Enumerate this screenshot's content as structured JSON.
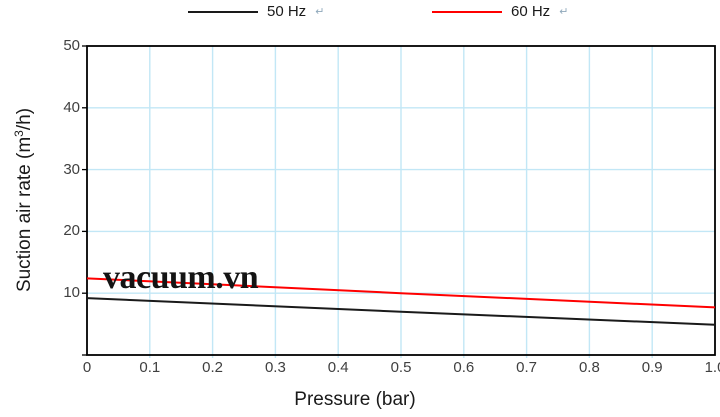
{
  "chart_data": {
    "type": "line",
    "title": "",
    "xlabel": "Pressure (bar)",
    "ylabel": "Suction air rate (m3/h)",
    "ylabel_parts": {
      "prefix": "Suction air rate (m",
      "sup": "3",
      "suffix": "/h)"
    },
    "xlim": [
      0,
      1.0
    ],
    "ylim": [
      0,
      50
    ],
    "xticks": [
      0,
      0.1,
      0.2,
      0.3,
      0.4,
      0.5,
      0.6,
      0.7,
      0.8,
      0.9,
      1.0
    ],
    "xtick_labels": [
      "0",
      "0.1",
      "0.2",
      "0.3",
      "0.4",
      "0.5",
      "0.6",
      "0.7",
      "0.8",
      "0.9",
      "1.0"
    ],
    "yticks": [
      0,
      10,
      20,
      30,
      40,
      50
    ],
    "ytick_labels": [
      "",
      "10",
      "20",
      "30",
      "40",
      "50"
    ],
    "grid": true,
    "legend_position": "top-outside",
    "x": [
      0,
      0.5,
      1.0
    ],
    "series": [
      {
        "name": "50 Hz",
        "color": "#1a1a1a",
        "values": [
          9.2,
          7.0,
          4.9
        ]
      },
      {
        "name": "60 Hz",
        "color": "#ff0000",
        "values": [
          12.4,
          10.0,
          7.7
        ]
      }
    ]
  },
  "legend": {
    "items": [
      {
        "label": "50 Hz",
        "return_mark": "↵",
        "color": "#1a1a1a"
      },
      {
        "label": "60 Hz",
        "return_mark": "↵",
        "color": "#ff0000"
      }
    ]
  },
  "watermark": {
    "text": "vacuum.vn"
  },
  "colors": {
    "grid": "#c2e7f6",
    "axis": "#000000",
    "tick_text": "#404040"
  }
}
